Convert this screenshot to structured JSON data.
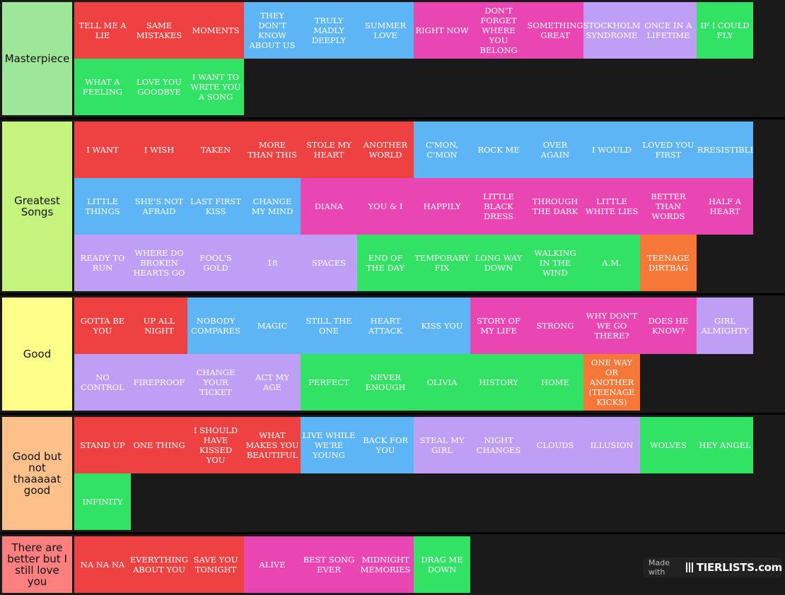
{
  "colors": {
    "red": "#ee4242",
    "blue": "#5eb5f6",
    "pink": "#e946b4",
    "purple": "#bf9ff5",
    "green": "#31e264",
    "orange": "#f67738",
    "background": "#1a1a1a"
  },
  "tiers": [
    {
      "label": "Masterpiece",
      "color": "#9ee79a",
      "items": [
        {
          "title": "TELL ME A LIE",
          "color": "red"
        },
        {
          "title": "SAME MISTAKES",
          "color": "red"
        },
        {
          "title": "MOMENTS",
          "color": "red"
        },
        {
          "title": "THEY DON'T KNOW ABOUT US",
          "color": "blue"
        },
        {
          "title": "TRULY MADLY DEEPLY",
          "color": "blue"
        },
        {
          "title": "SUMMER LOVE",
          "color": "blue"
        },
        {
          "title": "RIGHT NOW",
          "color": "pink"
        },
        {
          "title": "DON'T FORGET WHERE YOU BELONG",
          "color": "pink"
        },
        {
          "title": "SOMETHING GREAT",
          "color": "pink"
        },
        {
          "title": "STOCKHOLM SYNDROME",
          "color": "purple"
        },
        {
          "title": "ONCE IN A LIFETIME",
          "color": "purple"
        },
        {
          "title": "IF I COULD FLY",
          "color": "green"
        },
        {
          "title": "WHAT A FEELING",
          "color": "green"
        },
        {
          "title": "LOVE YOU GOODBYE",
          "color": "green"
        },
        {
          "title": "I WANT TO WRITE YOU A SONG",
          "color": "green"
        }
      ]
    },
    {
      "label": "Greatest Songs",
      "color": "#c6f47e",
      "items": [
        {
          "title": "I WANT",
          "color": "red"
        },
        {
          "title": "I WISH",
          "color": "red"
        },
        {
          "title": "TAKEN",
          "color": "red"
        },
        {
          "title": "MORE THAN THIS",
          "color": "red"
        },
        {
          "title": "STOLE MY HEART",
          "color": "red"
        },
        {
          "title": "ANOTHER WORLD",
          "color": "red"
        },
        {
          "title": "C'MON, C'MON",
          "color": "blue"
        },
        {
          "title": "ROCK ME",
          "color": "blue"
        },
        {
          "title": "OVER AGAIN",
          "color": "blue"
        },
        {
          "title": "I WOULD",
          "color": "blue"
        },
        {
          "title": "LOVED YOU FIRST",
          "color": "blue"
        },
        {
          "title": "IRRESISTIBLE",
          "color": "blue"
        },
        {
          "title": "LITTLE THINGS",
          "color": "blue"
        },
        {
          "title": "SHE'S NOT AFRAID",
          "color": "blue"
        },
        {
          "title": "LAST FIRST KISS",
          "color": "blue"
        },
        {
          "title": "CHANGE MY MIND",
          "color": "blue"
        },
        {
          "title": "DIANA",
          "color": "pink"
        },
        {
          "title": "YOU & I",
          "color": "pink"
        },
        {
          "title": "HAPPILY",
          "color": "pink"
        },
        {
          "title": "LITTLE BLACK DRESS",
          "color": "pink"
        },
        {
          "title": "THROUGH THE DARK",
          "color": "pink"
        },
        {
          "title": "LITTLE WHITE LIES",
          "color": "pink"
        },
        {
          "title": "BETTER THAN WORDS",
          "color": "pink"
        },
        {
          "title": "HALF A HEART",
          "color": "pink"
        },
        {
          "title": "READY TO RUN",
          "color": "purple"
        },
        {
          "title": "WHERE DO BROKEN HEARTS GO",
          "color": "purple"
        },
        {
          "title": "FOOL'S GOLD",
          "color": "purple"
        },
        {
          "title": "18",
          "color": "purple"
        },
        {
          "title": "SPACES",
          "color": "purple"
        },
        {
          "title": "END OF THE DAY",
          "color": "green"
        },
        {
          "title": "TEMPORARY FIX",
          "color": "green"
        },
        {
          "title": "LONG WAY DOWN",
          "color": "green"
        },
        {
          "title": "WALKING IN THE WIND",
          "color": "green"
        },
        {
          "title": "A.M.",
          "color": "green"
        },
        {
          "title": "TEENAGE DIRTBAG",
          "color": "orange"
        }
      ]
    },
    {
      "label": "Good",
      "color": "#fefe8b",
      "items": [
        {
          "title": "GOTTA BE YOU",
          "color": "red"
        },
        {
          "title": "UP ALL NIGHT",
          "color": "red"
        },
        {
          "title": "NOBODY COMPARES",
          "color": "blue"
        },
        {
          "title": "MAGIC",
          "color": "blue"
        },
        {
          "title": "STILL THE ONE",
          "color": "blue"
        },
        {
          "title": "HEART ATTACK",
          "color": "blue"
        },
        {
          "title": "KISS YOU",
          "color": "blue"
        },
        {
          "title": "STORY OF MY LIFE",
          "color": "pink"
        },
        {
          "title": "STRONG",
          "color": "pink"
        },
        {
          "title": "WHY DON'T WE GO THERE?",
          "color": "pink"
        },
        {
          "title": "DOES HE KNOW?",
          "color": "pink"
        },
        {
          "title": "GIRL ALMIGHTY",
          "color": "purple"
        },
        {
          "title": "NO CONTROL",
          "color": "purple"
        },
        {
          "title": "FIREPROOF",
          "color": "purple"
        },
        {
          "title": "CHANGE YOUR TICKET",
          "color": "purple"
        },
        {
          "title": "ACT MY AGE",
          "color": "purple"
        },
        {
          "title": "PERFECT",
          "color": "green"
        },
        {
          "title": "NEVER ENOUGH",
          "color": "green"
        },
        {
          "title": "OLIVIA",
          "color": "green"
        },
        {
          "title": "HISTORY",
          "color": "green"
        },
        {
          "title": "HOME",
          "color": "green"
        },
        {
          "title": "ONE WAY OR ANOTHER (TEENAGE KICKS)",
          "color": "orange"
        }
      ]
    },
    {
      "label": "Good but not thaaaaat good",
      "color": "#fec08a",
      "items": [
        {
          "title": "STAND UP",
          "color": "red"
        },
        {
          "title": "ONE THING",
          "color": "red"
        },
        {
          "title": "I SHOULD HAVE KISSED YOU",
          "color": "red"
        },
        {
          "title": "WHAT MAKES YOU BEAUTIFUL",
          "color": "red"
        },
        {
          "title": "LIVE WHILE WE'RE YOUNG",
          "color": "blue"
        },
        {
          "title": "BACK FOR YOU",
          "color": "blue"
        },
        {
          "title": "STEAL MY GIRL",
          "color": "purple"
        },
        {
          "title": "NIGHT CHANGES",
          "color": "purple"
        },
        {
          "title": "CLOUDS",
          "color": "purple"
        },
        {
          "title": "ILLUSION",
          "color": "purple"
        },
        {
          "title": "WOLVES",
          "color": "green"
        },
        {
          "title": "HEY ANGEL",
          "color": "green"
        },
        {
          "title": "INFINITY",
          "color": "green"
        }
      ]
    },
    {
      "label": "There are better but I still love you",
      "color": "#fe7f7f",
      "items": [
        {
          "title": "NA NA NA",
          "color": "red"
        },
        {
          "title": "EVERYTHING ABOUT YOU",
          "color": "red"
        },
        {
          "title": "SAVE YOU TONIGHT",
          "color": "red"
        },
        {
          "title": "ALIVE",
          "color": "pink"
        },
        {
          "title": "BEST SONG EVER",
          "color": "pink"
        },
        {
          "title": "MIDNIGHT MEMORIES",
          "color": "pink"
        },
        {
          "title": "DRAG ME DOWN",
          "color": "green"
        }
      ]
    }
  ],
  "watermark": {
    "made_with": "Made with",
    "brand": "TIERLISTS.com"
  }
}
